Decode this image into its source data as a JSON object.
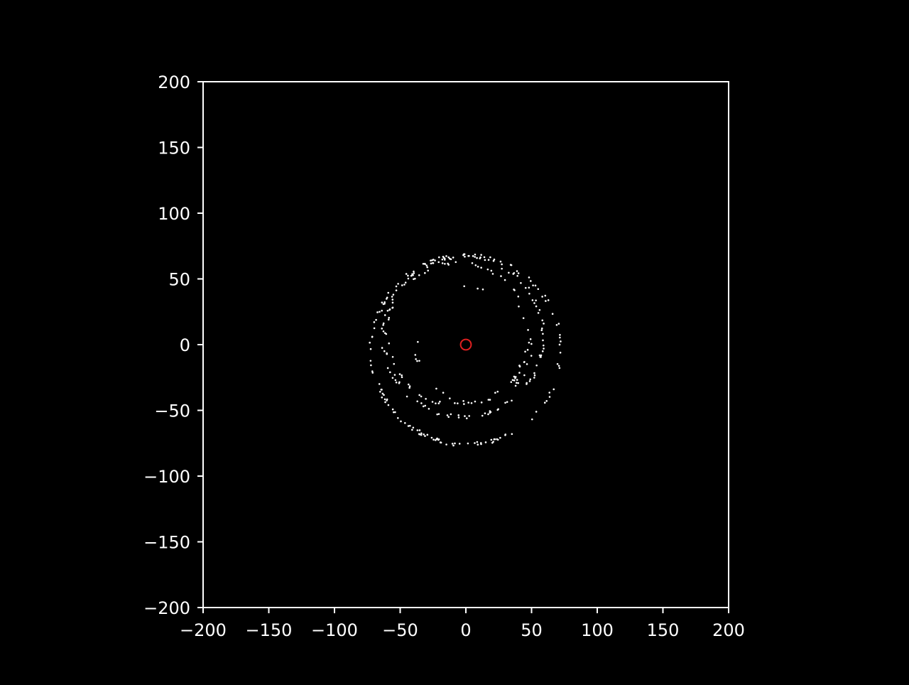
{
  "chart_data": {
    "type": "scatter",
    "title": "",
    "xlabel": "",
    "ylabel": "",
    "xlim": [
      -200,
      200
    ],
    "ylim": [
      -200,
      200
    ],
    "grid": false,
    "legend": "none",
    "background": "#000000",
    "axis_color": "#ffffff",
    "x_ticks": [
      -200,
      -150,
      -100,
      -50,
      0,
      50,
      100,
      150,
      200
    ],
    "y_ticks": [
      -200,
      -150,
      -100,
      -50,
      0,
      50,
      100,
      150,
      200
    ],
    "x_tick_labels": [
      "−200",
      "−150",
      "−100",
      "−50",
      "0",
      "50",
      "100",
      "150",
      "200"
    ],
    "y_tick_labels": [
      "−200",
      "−150",
      "−100",
      "−50",
      "0",
      "50",
      "100",
      "150",
      "200"
    ],
    "rings": [
      {
        "name": "",
        "center": [
          0,
          -4
        ],
        "radius": 72,
        "color": "#ffffff",
        "count": 150
      },
      {
        "name": "",
        "center": [
          -2,
          6
        ],
        "radius": 61,
        "color": "#ffffff",
        "count": 110
      },
      {
        "name": "",
        "center": [
          -6,
          8
        ],
        "radius": 54,
        "color": "#ffffff",
        "count": 70
      },
      {
        "name": "",
        "center": [
          6,
          0
        ],
        "radius": 44,
        "color": "#ffffff",
        "count": 25
      }
    ],
    "central_marker": {
      "x": 0,
      "y": 0,
      "radius": 4,
      "color": "#e02020",
      "fill": "none"
    }
  }
}
